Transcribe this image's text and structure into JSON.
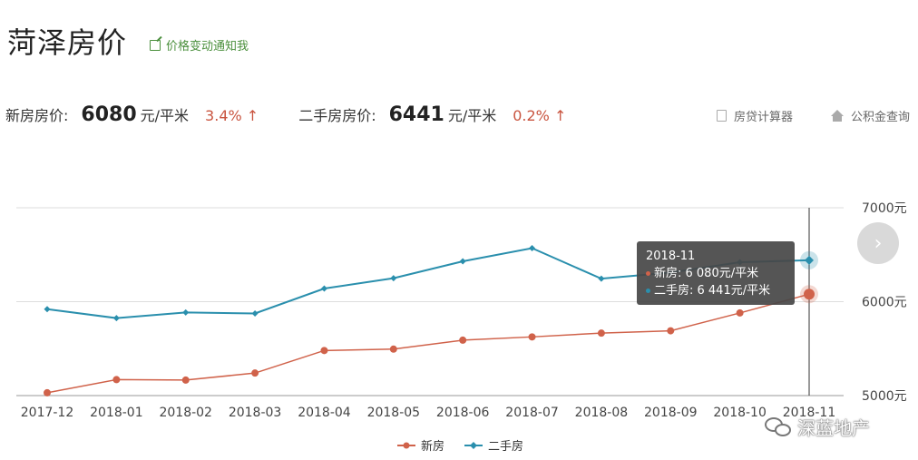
{
  "header": {
    "title": "菏泽房价",
    "notify_link": "价格变动通知我"
  },
  "prices": {
    "new_label": "新房房价:",
    "new_value": "6080",
    "new_unit": "元/平米",
    "new_change": "3.4% ↑",
    "used_label": "二手房房价:",
    "used_value": "6441",
    "used_unit": "元/平米",
    "used_change": "0.2% ↑"
  },
  "tools": {
    "calculator": "房贷计算器",
    "fund_query": "公积金查询"
  },
  "tooltip": {
    "date": "2018-11",
    "new_line": "新房: 6 080元/平米",
    "used_line": "二手房: 6 441元/平米"
  },
  "next_button": "›",
  "watermark": "深蓝地产",
  "colors": {
    "new": "#d0624a",
    "used": "#2a8fad",
    "accent_green": "#4a8f3c",
    "up": "#c9543f"
  },
  "chart_data": {
    "type": "line",
    "categories": [
      "2017-12",
      "2018-01",
      "2018-02",
      "2018-03",
      "2018-04",
      "2018-05",
      "2018-06",
      "2018-07",
      "2018-08",
      "2018-09",
      "2018-10",
      "2018-11"
    ],
    "series": [
      {
        "name": "新房",
        "values": [
          5030,
          5170,
          5165,
          5240,
          5480,
          5495,
          5590,
          5625,
          5665,
          5690,
          5880,
          6080
        ]
      },
      {
        "name": "二手房",
        "values": [
          5920,
          5825,
          5885,
          5875,
          6140,
          6250,
          6430,
          6570,
          6245,
          6310,
          6420,
          6441
        ]
      }
    ],
    "ytick_labels": [
      "7000元",
      "6000元",
      "5000元"
    ],
    "ylim": [
      5000,
      7000
    ],
    "grid": true,
    "legend": "bottom-center",
    "highlight_index": 11
  }
}
